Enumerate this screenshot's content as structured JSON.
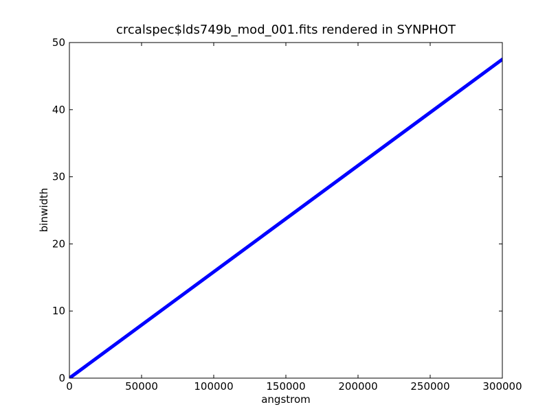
{
  "chart_data": {
    "type": "line",
    "title": "crcalspec$lds749b_mod_001.fits rendered in SYNPHOT",
    "xlabel": "angstrom",
    "ylabel": "binwidth",
    "xlim": [
      0,
      300000
    ],
    "ylim": [
      0,
      50
    ],
    "x_ticks": [
      0,
      50000,
      100000,
      150000,
      200000,
      250000,
      300000
    ],
    "x_tick_labels": [
      "0",
      "50000",
      "100000",
      "150000",
      "200000",
      "250000",
      "300000"
    ],
    "y_ticks": [
      0,
      10,
      20,
      30,
      40,
      50
    ],
    "y_tick_labels": [
      "0",
      "10",
      "20",
      "30",
      "40",
      "50"
    ],
    "grid": false,
    "series": [
      {
        "color": "#0000ff",
        "x": [
          0,
          300000
        ],
        "y": [
          0,
          47.5
        ]
      }
    ]
  }
}
